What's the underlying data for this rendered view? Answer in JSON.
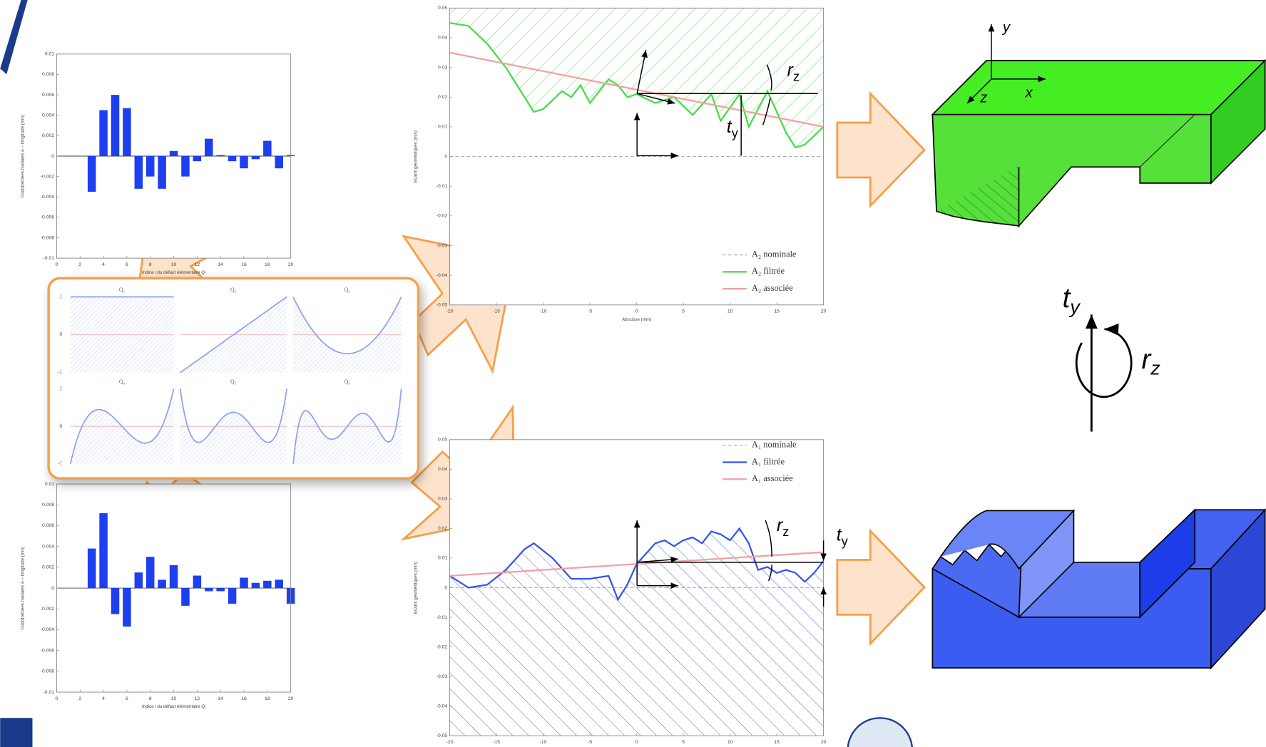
{
  "chart_data": [
    {
      "type": "bar",
      "xlabel": "Indice i du défaut élémentaire Qᵢ",
      "ylabel": "Coordonnées modales λᵢ – longitude (mm)",
      "x": [
        3,
        4,
        5,
        6,
        7,
        8,
        9,
        10,
        11,
        12,
        13,
        14,
        15,
        16,
        17,
        18,
        19,
        20
      ],
      "values": [
        -0.0035,
        0.0045,
        0.006,
        0.0047,
        -0.0032,
        -0.002,
        -0.0032,
        0.0005,
        -0.002,
        -0.0005,
        0.0017,
        0.0001,
        -0.0005,
        -0.0012,
        -0.0003,
        0.0015,
        -0.0012,
        0.0001
      ],
      "color": "#1c3ff0",
      "xlim": [
        0,
        20
      ],
      "xticks": [
        0,
        2,
        4,
        6,
        8,
        10,
        12,
        14,
        16,
        18,
        20
      ],
      "ylim": [
        -0.01,
        0.01
      ],
      "yticks": [
        -0.01,
        -0.008,
        -0.006,
        -0.004,
        -0.002,
        0,
        0.002,
        0.004,
        0.006,
        0.008,
        0.01
      ]
    },
    {
      "type": "line",
      "xlabel": "Abscisse (mm)",
      "ylabel": "Ecarts géométriques (mm)",
      "legend": "lower right",
      "fill": "above",
      "xlim": [
        -20,
        20
      ],
      "xticks": [
        -20,
        -15,
        -10,
        -5,
        0,
        5,
        10,
        15,
        20
      ],
      "ylim": [
        -0.05,
        0.05
      ],
      "yticks": [
        -0.05,
        -0.04,
        -0.03,
        -0.02,
        -0.01,
        0,
        0.01,
        0.02,
        0.03,
        0.04,
        0.05
      ],
      "series": [
        {
          "name": "A₂ nominale",
          "color": "#aaaaaa",
          "dash": true,
          "x": [
            -20,
            20
          ],
          "values": [
            0,
            0
          ]
        },
        {
          "name": "A₂ filtrée",
          "color": "#44dd44",
          "x": [
            -20,
            -18,
            -16,
            -14,
            -12,
            -11,
            -10,
            -8,
            -7,
            -6,
            -5,
            -4,
            -3,
            -2,
            -1,
            0,
            2,
            4,
            6,
            8,
            9,
            11,
            12,
            14,
            16,
            17,
            18,
            20
          ],
          "values": [
            0.045,
            0.044,
            0.038,
            0.03,
            0.02,
            0.015,
            0.016,
            0.022,
            0.02,
            0.024,
            0.018,
            0.022,
            0.026,
            0.024,
            0.02,
            0.021,
            0.018,
            0.02,
            0.014,
            0.021,
            0.012,
            0.021,
            0.01,
            0.022,
            0.008,
            0.003,
            0.004,
            0.01
          ]
        },
        {
          "name": "A₂ associée",
          "color": "#f4a0a0",
          "x": [
            -20,
            20
          ],
          "values": [
            0.035,
            0.01
          ]
        }
      ],
      "annotations": [
        {
          "base": "r",
          "sub": "z"
        },
        {
          "base": "t",
          "sub": "y"
        }
      ]
    },
    {
      "type": "line",
      "ylabel": "Ecarts géométriques (mm)",
      "legend": "upper right",
      "fill": "below",
      "xlim": [
        -20,
        20
      ],
      "xticks": [
        -20,
        -15,
        -10,
        -5,
        0,
        5,
        10,
        15,
        20
      ],
      "ylim": [
        -0.05,
        0.05
      ],
      "yticks": [
        -0.05,
        -0.04,
        -0.03,
        -0.02,
        -0.01,
        0,
        0.01,
        0.02,
        0.03,
        0.04,
        0.05
      ],
      "series": [
        {
          "name": "A₁ nominale",
          "color": "#aaaaaa",
          "dash": true,
          "x": [
            -20,
            20
          ],
          "values": [
            0,
            0
          ]
        },
        {
          "name": "A₁ filtrée",
          "color": "#3355ee",
          "x": [
            -20,
            -18,
            -16,
            -14,
            -12,
            -11,
            -9,
            -7,
            -5,
            -3,
            -2,
            -1,
            0,
            2,
            3,
            4,
            5,
            6,
            7,
            8,
            9,
            10,
            11,
            12,
            13,
            14,
            15,
            16,
            17,
            18,
            19,
            20
          ],
          "values": [
            0.004,
            0,
            0.001,
            0.006,
            0.013,
            0.015,
            0.01,
            0.003,
            0.003,
            0.004,
            -0.004,
            0.001,
            0.008,
            0.015,
            0.016,
            0.014,
            0.016,
            0.017,
            0.015,
            0.019,
            0.018,
            0.016,
            0.02,
            0.015,
            0.006,
            0.007,
            0.005,
            0.006,
            0.005,
            0.002,
            0.005,
            0.009
          ]
        },
        {
          "name": "A₁ associée",
          "color": "#f4a0a0",
          "x": [
            -20,
            20
          ],
          "values": [
            0.004,
            0.012
          ]
        }
      ],
      "annotations": [
        {
          "base": "r",
          "sub": "z"
        },
        {
          "base": "t",
          "sub": "y"
        }
      ]
    },
    {
      "type": "bar",
      "xlabel": "Indice i du défaut élémentaire Qᵢ",
      "ylabel": "Coordonnées modales λᵢ – longitude (mm)",
      "x": [
        3,
        4,
        5,
        6,
        7,
        8,
        9,
        10,
        11,
        12,
        13,
        14,
        15,
        16,
        17,
        18,
        19,
        20
      ],
      "values": [
        0.0038,
        0.0072,
        -0.0025,
        -0.0037,
        0.0015,
        0.003,
        0.0008,
        0.0022,
        -0.0017,
        0.0012,
        -0.0003,
        -0.0003,
        -0.0015,
        0.001,
        0.0005,
        0.0007,
        0.0008,
        -0.0015
      ],
      "color": "#1c3ff0",
      "xlim": [
        0,
        20
      ],
      "xticks": [
        0,
        2,
        4,
        6,
        8,
        10,
        12,
        14,
        16,
        18,
        20
      ],
      "ylim": [
        -0.01,
        0.01
      ],
      "yticks": [
        -0.01,
        -0.008,
        -0.006,
        -0.004,
        -0.002,
        0,
        0.002,
        0.004,
        0.006,
        0.008,
        0.01
      ]
    }
  ],
  "basis_panel": {
    "titles": [
      "Q₁",
      "Q₂",
      "Q₃",
      "Q₄",
      "Q₅",
      "Q₆"
    ],
    "yticks": [
      1,
      0,
      -1
    ]
  },
  "frame_axes": [
    "y",
    "x",
    "z"
  ],
  "rotation": {
    "t": {
      "base": "t",
      "sub": "y"
    },
    "r": {
      "base": "r",
      "sub": "z"
    }
  }
}
